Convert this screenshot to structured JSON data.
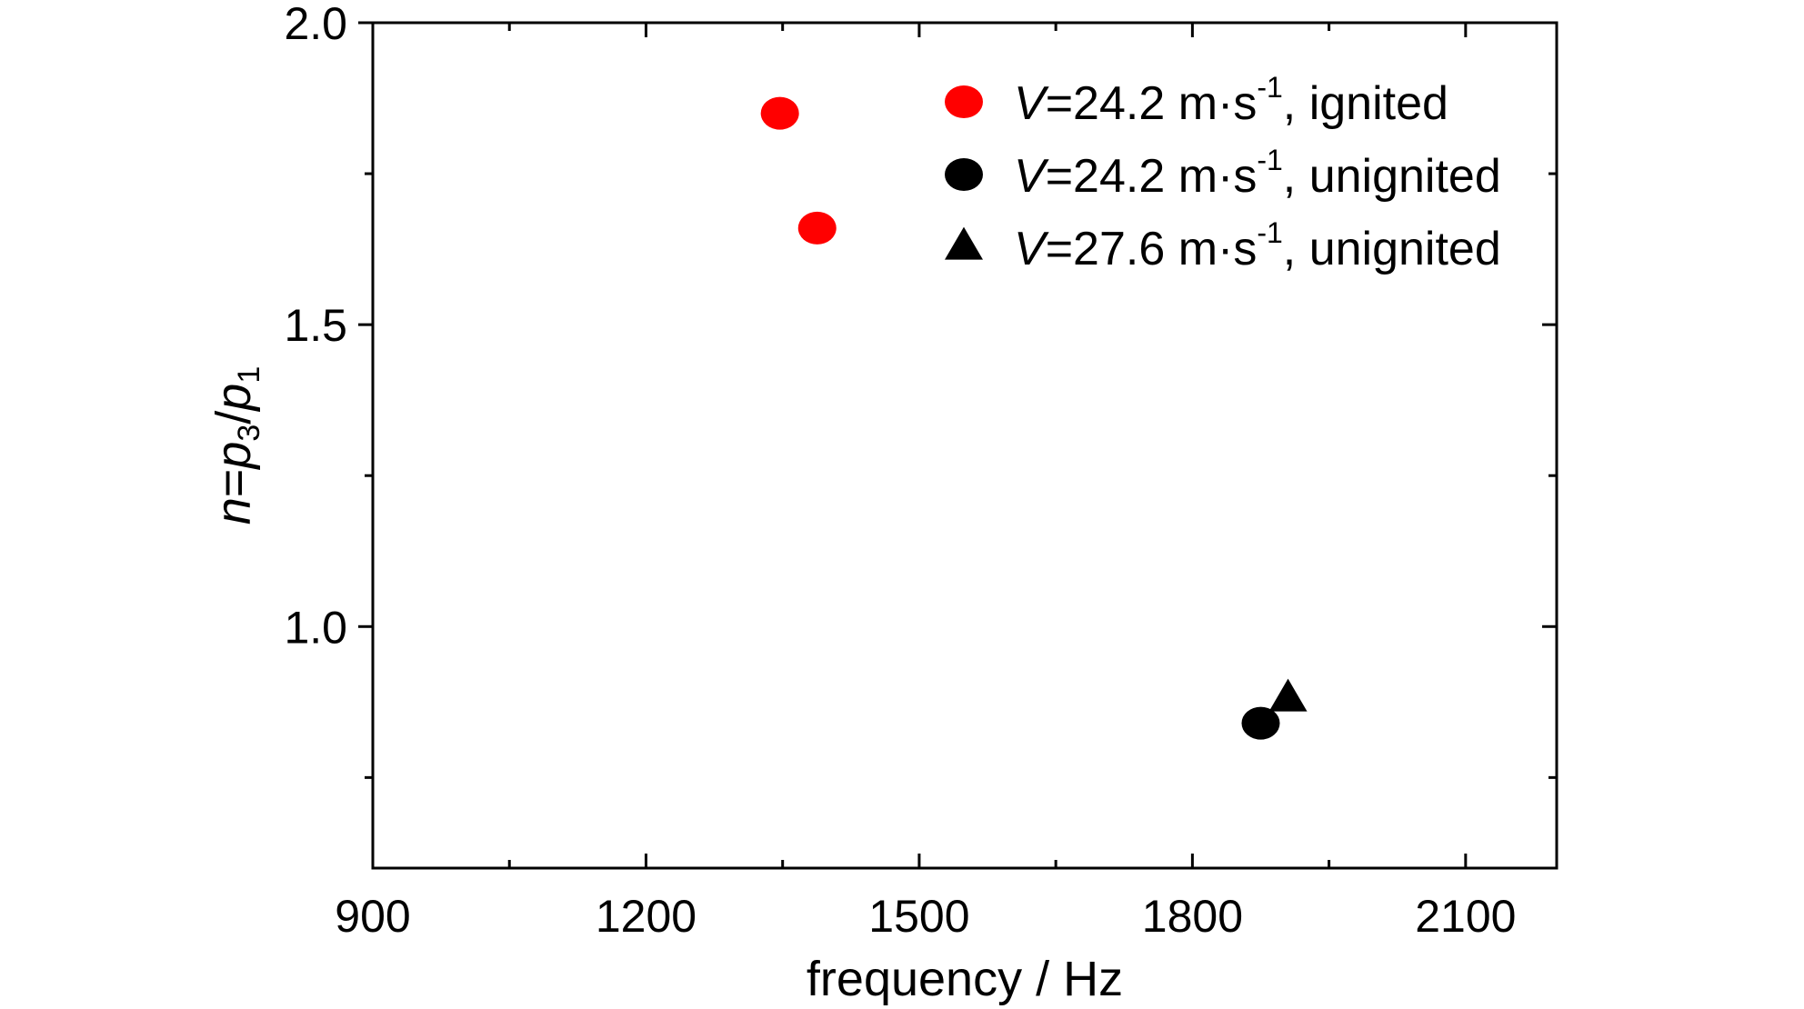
{
  "chart_data": {
    "type": "scatter",
    "title": "",
    "xlabel": "frequency / Hz",
    "ylabel": {
      "var1": "n",
      "eq": "=",
      "var2": "p",
      "sub2": "3",
      "slash": "/",
      "var3": "p",
      "sub3": "1"
    },
    "xlim": [
      900,
      2200
    ],
    "ylim": [
      0.6,
      2.0
    ],
    "x_major_ticks": [
      900,
      1200,
      1500,
      1800,
      2100
    ],
    "x_major_labels": [
      "900",
      "1200",
      "1500",
      "1800",
      "2100"
    ],
    "x_minor_ticks": [
      1050,
      1350,
      1650,
      1950
    ],
    "y_major_ticks": [
      1.0,
      1.5,
      2.0
    ],
    "y_major_labels": [
      "1.0",
      "1.5",
      "2.0"
    ],
    "y_minor_ticks": [
      0.75,
      1.25,
      1.75
    ],
    "grid": false,
    "legend_position": "top-right",
    "series": [
      {
        "name": {
          "var": "V",
          "value": "=24.2 m·s",
          "sup": "-1",
          "rest": ", ignited"
        },
        "marker": "circle",
        "color": "#ff0000",
        "points": [
          {
            "x": 1347,
            "y": 1.85
          },
          {
            "x": 1388,
            "y": 1.66
          }
        ]
      },
      {
        "name": {
          "var": "V",
          "value": "=24.2 m·s",
          "sup": "-1",
          "rest": ", unignited"
        },
        "marker": "circle",
        "color": "#000000",
        "points": [
          {
            "x": 1875,
            "y": 0.84
          }
        ]
      },
      {
        "name": {
          "var": "V",
          "value": "=27.6 m·s",
          "sup": "-1",
          "rest": ", unignited"
        },
        "marker": "triangle",
        "color": "#000000",
        "points": [
          {
            "x": 1905,
            "y": 0.88
          }
        ]
      }
    ]
  }
}
